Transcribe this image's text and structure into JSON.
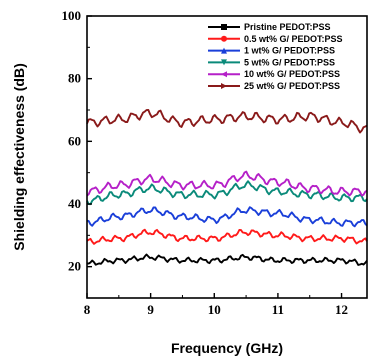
{
  "chart_data": {
    "type": "line",
    "title": "",
    "xlabel": "Frequency (GHz)",
    "ylabel": "Shielding effectiveness (dB)",
    "xlim": [
      8,
      12.4
    ],
    "ylim": [
      10,
      100
    ],
    "x_ticks": [
      8,
      9,
      10,
      11,
      12
    ],
    "y_ticks": [
      20,
      40,
      60,
      80,
      100
    ],
    "legend_position": "top-right",
    "series": [
      {
        "name": "Pristine PEDOT:PSS",
        "color": "#000000",
        "marker": "square",
        "x": [
          8.0,
          8.5,
          9.0,
          9.5,
          10.0,
          10.5,
          11.0,
          11.5,
          12.0,
          12.4
        ],
        "y": [
          21,
          22,
          23,
          22,
          22,
          23,
          22,
          22,
          22,
          21
        ]
      },
      {
        "name": "0.5 wt% G/ PEDOT:PSS",
        "color": "#ff1a1a",
        "marker": "circle",
        "x": [
          8.0,
          8.5,
          9.0,
          9.5,
          10.0,
          10.5,
          11.0,
          11.5,
          12.0,
          12.4
        ],
        "y": [
          28,
          29,
          31,
          29,
          29,
          31,
          30,
          29,
          29,
          28
        ]
      },
      {
        "name": "1 wt% G/ PEDOT:PSS",
        "color": "#1a3fd9",
        "marker": "triangle-up",
        "x": [
          8.0,
          8.5,
          9.0,
          9.5,
          10.0,
          10.5,
          11.0,
          11.5,
          12.0,
          12.4
        ],
        "y": [
          34,
          36,
          38,
          36,
          35,
          38,
          37,
          35,
          34,
          34
        ]
      },
      {
        "name": "5 wt% G/ PEDOT:PSS",
        "color": "#0a8a7a",
        "marker": "triangle-down",
        "x": [
          8.0,
          8.5,
          9.0,
          9.5,
          10.0,
          10.5,
          11.0,
          11.5,
          12.0,
          12.4
        ],
        "y": [
          41,
          43,
          45,
          43,
          43,
          46,
          44,
          43,
          42,
          42
        ]
      },
      {
        "name": "10 wt% G/ PEDOT:PSS",
        "color": "#b520c8",
        "marker": "triangle-left",
        "x": [
          8.0,
          8.5,
          9.0,
          9.5,
          10.0,
          10.5,
          11.0,
          11.5,
          12.0,
          12.4
        ],
        "y": [
          44,
          46,
          48,
          46,
          46,
          49,
          47,
          45,
          44,
          44
        ]
      },
      {
        "name": "25 wt% G/ PEDOT:PSS",
        "color": "#8a1a1a",
        "marker": "triangle-right",
        "x": [
          8.0,
          8.5,
          9.0,
          9.5,
          10.0,
          10.5,
          11.0,
          11.5,
          12.0,
          12.4
        ],
        "y": [
          66,
          67,
          69,
          66,
          67,
          68,
          67,
          68,
          66,
          64
        ]
      }
    ]
  }
}
